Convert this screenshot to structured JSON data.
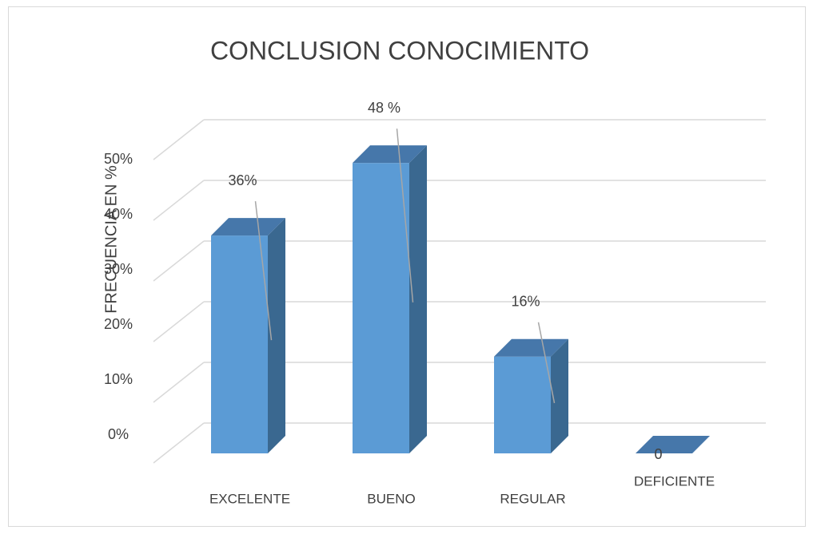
{
  "chart_data": {
    "type": "bar",
    "title": "CONCLUSION CONOCIMIENTO",
    "y_label": "FRECUENCIA EN %",
    "categories": [
      "EXCELENTE",
      "BUENO",
      "REGULAR",
      "DEFICIENTE"
    ],
    "values": [
      36,
      48,
      16,
      0
    ],
    "value_labels": [
      "36%",
      "48 %",
      "16%",
      "0"
    ],
    "color": "#5b9bd5",
    "ylim": [
      0,
      50
    ],
    "yticks": [
      {
        "value": 0,
        "label": "0%"
      },
      {
        "value": 10,
        "label": "10%"
      },
      {
        "value": 20,
        "label": "20%"
      },
      {
        "value": 30,
        "label": "30%"
      },
      {
        "value": 40,
        "label": "40%"
      },
      {
        "value": 50,
        "label": "50%"
      }
    ],
    "grid": true
  }
}
